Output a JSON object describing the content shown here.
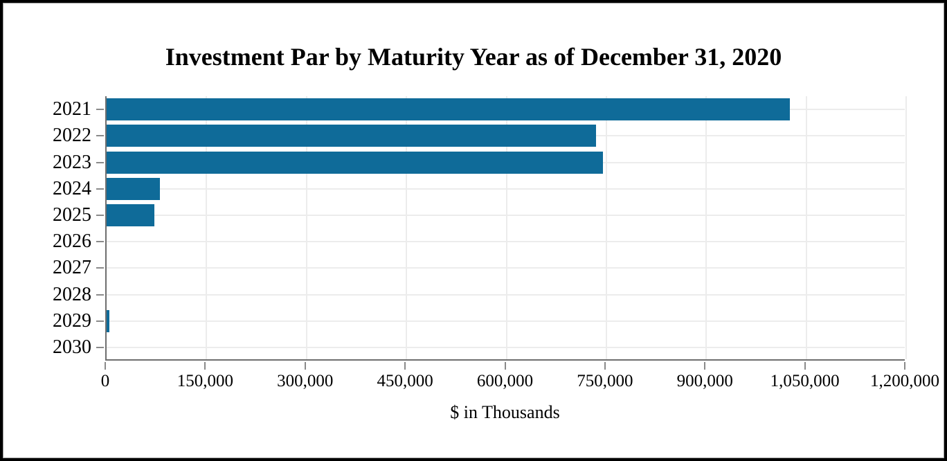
{
  "window": {
    "background": "#ffffff",
    "border_color": "#000000"
  },
  "chart_data": {
    "type": "bar",
    "orientation": "horizontal",
    "title": "Investment Par by Maturity Year as of December 31, 2020",
    "xlabel": "$ in Thousands",
    "ylabel": "",
    "categories": [
      "2021",
      "2022",
      "2023",
      "2024",
      "2025",
      "2026",
      "2027",
      "2028",
      "2029",
      "2030"
    ],
    "values": [
      1025000,
      735000,
      745000,
      80000,
      72000,
      0,
      0,
      0,
      4500,
      0
    ],
    "xlim": [
      0,
      1200000
    ],
    "x_ticks": [
      0,
      150000,
      300000,
      450000,
      600000,
      750000,
      900000,
      1050000,
      1200000
    ],
    "x_tick_labels": [
      "0",
      "150,000",
      "300,000",
      "450,000",
      "600,000",
      "750,000",
      "900,000",
      "1,050,000",
      "1,200,000"
    ],
    "grid": true,
    "legend": false,
    "bar_color": "#0f6b99",
    "axis_color": "#6e6e6e",
    "tick_color": "#8a8a8a",
    "grid_color": "#ececec",
    "text_color": "#000000"
  }
}
